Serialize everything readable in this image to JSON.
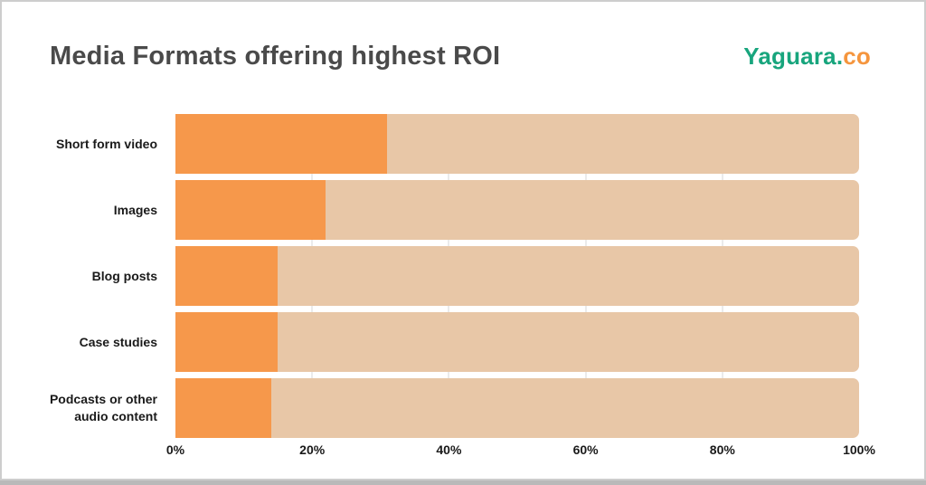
{
  "page": {
    "title": "Media Formats offering highest ROI",
    "logo": {
      "primary": "Yaguara.",
      "secondary": "co"
    }
  },
  "chart_data": {
    "type": "bar",
    "orientation": "horizontal",
    "title": "Media Formats offering highest ROI",
    "categories": [
      "Short form video",
      "Images",
      "Blog posts",
      "Case studies",
      "Podcasts or other audio content"
    ],
    "values": [
      31,
      22,
      15,
      15,
      14
    ],
    "unit": "%",
    "xlabel": "",
    "ylabel": "",
    "xlim": [
      0,
      100
    ],
    "x_ticks": [
      "0%",
      "20%",
      "40%",
      "60%",
      "80%",
      "100%"
    ],
    "grid": true,
    "legend": false,
    "colors": {
      "bar_fill": "#f6984b",
      "bar_track": "#e8c7a7",
      "title": "#4a4a4a",
      "label": "#1a1a1a",
      "gridline": "#ebebeb",
      "logo_green": "#18a57d",
      "logo_orange": "#f5953d",
      "frame_border": "#cdcdcd",
      "frame_shadow": "#b9b9b9"
    }
  }
}
